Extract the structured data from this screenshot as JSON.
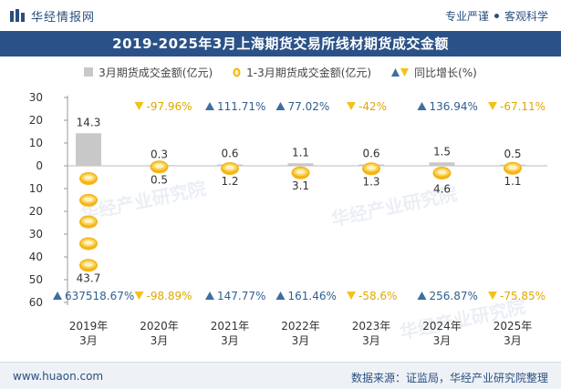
{
  "brand": {
    "name": "华经情报网",
    "tagline_left": "专业严谨",
    "tagline_right": "客观科学"
  },
  "title": "2019-2025年3月上海期货交易所线材期货成交金额",
  "legend": {
    "monthly": "3月期货成交金额(亿元)",
    "cumulative": "1-3月期货成交金额(亿元)",
    "yoy": "同比增长(%)"
  },
  "footer": {
    "site": "www.huaon.com",
    "source": "数据来源：证监局，华经产业研究院整理"
  },
  "watermark": "华经产业研究院",
  "colors": {
    "bar": "#c8c8c8",
    "coin": "#f5b417",
    "up": "#3e6f9e",
    "down": "#f3c21a",
    "up_text": "#2f5f8f",
    "down_text": "#e0a800"
  },
  "chart_data": {
    "type": "bar",
    "categories": [
      "2019年\n3月",
      "2020年\n3月",
      "2021年\n3月",
      "2022年\n3月",
      "2023年\n3月",
      "2024年\n3月",
      "2025年\n3月"
    ],
    "series": [
      {
        "name": "3月期货成交金额(亿元)",
        "values": [
          14.3,
          0.3,
          0.6,
          1.1,
          0.6,
          1.5,
          0.5
        ],
        "labels": [
          "14.3",
          "0.3",
          "0.6",
          "1.1",
          "0.6",
          "1.5",
          "0.5"
        ]
      },
      {
        "name": "1-3月期货成交金额(亿元)",
        "values": [
          43.7,
          0.5,
          1.2,
          3.1,
          1.3,
          4.6,
          1.1
        ],
        "labels": [
          "43.7",
          "0.5",
          "1.2",
          "3.1",
          "1.3",
          "4.6",
          "1.1"
        ]
      }
    ],
    "yoy_monthly": [
      "",
      "-97.96%",
      "111.71%",
      "77.02%",
      "-42%",
      "136.94%",
      "-67.11%"
    ],
    "yoy_cumulative": [
      "637518.67%",
      "-98.89%",
      "147.77%",
      "161.46%",
      "-58.6%",
      "256.87%",
      "-75.85%"
    ],
    "y_ticks_upper": [
      30,
      20,
      10,
      0
    ],
    "y_ticks_lower": [
      10,
      20,
      30,
      40,
      50,
      60
    ],
    "ylim_upper": [
      0,
      30
    ],
    "ylim_lower": [
      0,
      60
    ],
    "legend_position": "top"
  }
}
